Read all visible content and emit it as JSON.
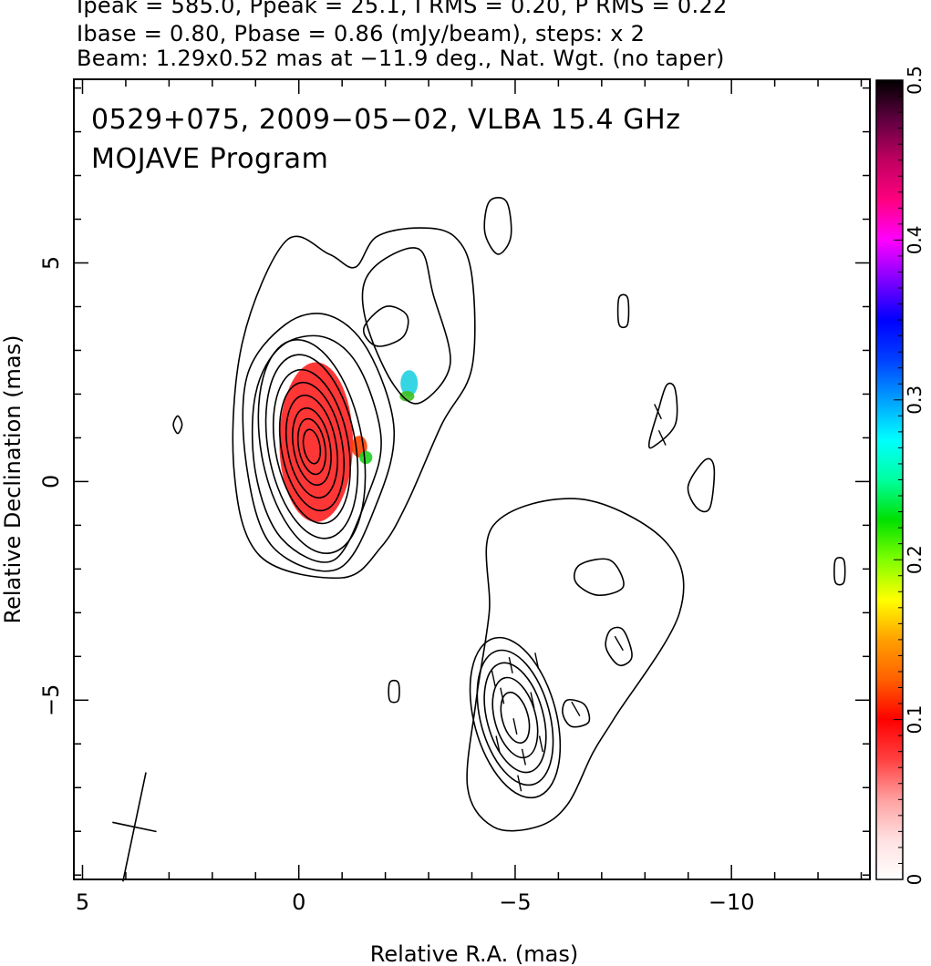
{
  "header": {
    "line1": "Ipeak = 585.0, Ppeak = 25.1, I RMS = 0.20, P RMS = 0.22",
    "line2": "Ibase = 0.80, Pbase = 0.86 (mJy/beam), steps: x 2",
    "line3": "Beam: 1.29x0.52 mas at −11.9 deg., Nat. Wgt. (no taper)"
  },
  "chart_data": {
    "type": "contour",
    "title": "0529+075, 2009−05−02, VLBA 15.4 GHz",
    "subtitle": "MOJAVE Program",
    "xlabel": "Relative R.A. (mas)",
    "ylabel": "Relative Declination (mas)",
    "xlim": [
      5.2,
      -13.2
    ],
    "ylim": [
      -9.1,
      9.2
    ],
    "x_ticks": [
      5,
      0,
      -5,
      -10
    ],
    "x_tick_labels": [
      "5",
      "0",
      "−5",
      "−10"
    ],
    "y_ticks": [
      5,
      0,
      -5
    ],
    "y_tick_labels": [
      "5",
      "0",
      "−5"
    ],
    "beam": {
      "major_mas": 1.29,
      "minor_mas": 0.52,
      "pa_deg": -11.9
    },
    "contour_base_mJy_per_beam": 0.8,
    "contour_step_factor": 2,
    "core_contours": {
      "center": [
        -0.3,
        0.8
      ],
      "major_axes_mas": [
        0.8,
        1.3,
        1.8,
        2.4,
        3.0,
        3.6,
        4.3,
        5.0
      ],
      "axis_ratio": 0.47,
      "pa_deg": -10
    },
    "knot_contours": {
      "center": [
        -5.0,
        -5.4
      ],
      "major_axes_mas": [
        1.2,
        1.9,
        2.6,
        3.2,
        3.8
      ],
      "axis_ratio": 0.5,
      "pa_deg": -15
    },
    "outer_contours": [
      {
        "name": "core-outer",
        "points": [
          [
            -0.8,
            -1.8
          ],
          [
            0.4,
            -1.3
          ],
          [
            1.0,
            0.2
          ],
          [
            1.0,
            2.0
          ],
          [
            0.4,
            3.1
          ],
          [
            -0.6,
            3.3
          ],
          [
            -1.4,
            2.6
          ],
          [
            -1.9,
            1.0
          ],
          [
            -1.6,
            -0.3
          ]
        ]
      },
      {
        "name": "core-outer-2",
        "points": [
          [
            -0.9,
            -2.0
          ],
          [
            0.6,
            -1.5
          ],
          [
            1.2,
            0.3
          ],
          [
            1.2,
            2.4
          ],
          [
            0.3,
            3.6
          ],
          [
            -0.7,
            3.8
          ],
          [
            -1.6,
            3.0
          ],
          [
            -2.2,
            1.2
          ],
          [
            -1.8,
            -0.5
          ]
        ]
      },
      {
        "name": "envelope",
        "points": [
          [
            -1.0,
            -2.2
          ],
          [
            0.9,
            -1.7
          ],
          [
            1.5,
            0.3
          ],
          [
            1.3,
            3.2
          ],
          [
            0.3,
            5.5
          ],
          [
            -0.7,
            5.2
          ],
          [
            -1.3,
            4.9
          ],
          [
            -1.8,
            5.6
          ],
          [
            -2.8,
            5.8
          ],
          [
            -3.6,
            5.6
          ],
          [
            -4.0,
            4.7
          ],
          [
            -4.0,
            2.6
          ],
          [
            -3.3,
            1.3
          ],
          [
            -2.5,
            -0.5
          ],
          [
            -1.9,
            -1.5
          ]
        ]
      },
      {
        "name": "lobe-inner",
        "points": [
          [
            -1.5,
            4.5
          ],
          [
            -2.0,
            5.1
          ],
          [
            -2.8,
            5.3
          ],
          [
            -3.1,
            4.3
          ],
          [
            -3.5,
            2.7
          ],
          [
            -2.8,
            1.8
          ],
          [
            -2.2,
            2.2
          ],
          [
            -1.6,
            3.5
          ]
        ]
      },
      {
        "name": "lobe-hole",
        "points": [
          [
            -1.5,
            3.5
          ],
          [
            -2.0,
            4.0
          ],
          [
            -2.5,
            3.8
          ],
          [
            -2.4,
            3.3
          ],
          [
            -1.8,
            3.1
          ]
        ]
      },
      {
        "name": "jet-envelope",
        "points": [
          [
            -4.5,
            -1.0
          ],
          [
            -6.5,
            -0.4
          ],
          [
            -8.5,
            -1.4
          ],
          [
            -8.8,
            -3.0
          ],
          [
            -7.3,
            -5.4
          ],
          [
            -6.8,
            -6.2
          ],
          [
            -6.2,
            -7.4
          ],
          [
            -5.5,
            -7.9
          ],
          [
            -4.5,
            -7.9
          ],
          [
            -3.9,
            -7.0
          ],
          [
            -4.1,
            -5.0
          ],
          [
            -4.4,
            -3.0
          ]
        ]
      },
      {
        "name": "blob-1",
        "points": [
          [
            -4.4,
            6.4
          ],
          [
            -4.8,
            6.4
          ],
          [
            -4.9,
            5.6
          ],
          [
            -4.6,
            5.2
          ],
          [
            -4.3,
            5.7
          ]
        ]
      },
      {
        "name": "blob-2",
        "points": [
          [
            -7.4,
            4.2
          ],
          [
            -7.6,
            4.2
          ],
          [
            -7.6,
            3.6
          ],
          [
            -7.4,
            3.6
          ]
        ]
      },
      {
        "name": "blob-3",
        "points": [
          [
            -8.5,
            2.2
          ],
          [
            -8.7,
            2.1
          ],
          [
            -8.7,
            1.3
          ],
          [
            -8.2,
            0.8
          ],
          [
            -8.1,
            0.9
          ],
          [
            -8.3,
            1.6
          ]
        ]
      },
      {
        "name": "blob-4",
        "points": [
          [
            -9.4,
            0.5
          ],
          [
            -9.6,
            0.3
          ],
          [
            -9.5,
            -0.6
          ],
          [
            -9.2,
            -0.6
          ],
          [
            -9.0,
            -0.1
          ]
        ]
      },
      {
        "name": "blob-5",
        "points": [
          [
            -6.5,
            -1.9
          ],
          [
            -7.2,
            -1.8
          ],
          [
            -7.5,
            -2.4
          ],
          [
            -6.9,
            -2.6
          ],
          [
            -6.4,
            -2.3
          ]
        ]
      },
      {
        "name": "blob-6",
        "points": [
          [
            -7.2,
            -3.4
          ],
          [
            -7.5,
            -3.4
          ],
          [
            -7.7,
            -4.0
          ],
          [
            -7.4,
            -4.2
          ],
          [
            -7.1,
            -3.8
          ]
        ]
      },
      {
        "name": "blob-7",
        "points": [
          [
            -6.2,
            -5.0
          ],
          [
            -6.6,
            -5.1
          ],
          [
            -6.7,
            -5.5
          ],
          [
            -6.3,
            -5.6
          ],
          [
            -6.1,
            -5.3
          ]
        ]
      },
      {
        "name": "blob-8",
        "points": [
          [
            2.8,
            1.5
          ],
          [
            2.7,
            1.3
          ],
          [
            2.8,
            1.1
          ],
          [
            2.9,
            1.3
          ]
        ]
      },
      {
        "name": "blob-9",
        "points": [
          [
            -2.1,
            -4.6
          ],
          [
            -2.3,
            -4.6
          ],
          [
            -2.3,
            -5.0
          ],
          [
            -2.1,
            -5.0
          ]
        ]
      },
      {
        "name": "blob-10",
        "points": [
          [
            -12.4,
            -1.8
          ],
          [
            -12.6,
            -1.8
          ],
          [
            -12.6,
            -2.3
          ],
          [
            -12.4,
            -2.3
          ]
        ]
      }
    ],
    "polarization_patches": [
      {
        "name": "core-patch",
        "center": [
          -0.4,
          0.9
        ],
        "rx": 0.85,
        "ry": 1.85,
        "color": "#ff2020"
      },
      {
        "name": "patch-2a",
        "center": [
          -1.4,
          0.8
        ],
        "rx": 0.18,
        "ry": 0.25,
        "color": "#ff4000"
      },
      {
        "name": "patch-2b",
        "center": [
          -1.55,
          0.55
        ],
        "rx": 0.15,
        "ry": 0.15,
        "color": "#20d020"
      },
      {
        "name": "patch-3a",
        "center": [
          -2.55,
          2.25
        ],
        "rx": 0.2,
        "ry": 0.3,
        "color": "#20d0e0"
      },
      {
        "name": "patch-3b",
        "center": [
          -2.5,
          1.95
        ],
        "rx": 0.17,
        "ry": 0.12,
        "color": "#40c020"
      }
    ],
    "evpa_vectors": [
      [
        -4.7,
        -4.9,
        -12
      ],
      [
        -5.0,
        -5.6,
        -12
      ],
      [
        -5.2,
        -6.3,
        -12
      ],
      [
        -4.9,
        -4.2,
        -12
      ],
      [
        -5.4,
        -5.0,
        -12
      ],
      [
        -4.6,
        -6.0,
        -12
      ],
      [
        -5.5,
        -4.1,
        -12
      ],
      [
        -4.5,
        -4.5,
        -12
      ],
      [
        -5.6,
        -6.0,
        -12
      ],
      [
        -5.1,
        -6.9,
        -12
      ],
      [
        -8.3,
        1.6,
        -25
      ],
      [
        -8.4,
        1.0,
        -25
      ],
      [
        -7.4,
        -3.7,
        -30
      ],
      [
        -6.4,
        -5.2,
        -30
      ]
    ],
    "colorbar": {
      "min": 0,
      "max": 0.5,
      "ticks": [
        0,
        0.1,
        0.2,
        0.3,
        0.4,
        0.5
      ],
      "tick_labels": [
        "0",
        "0.1",
        "0.2",
        "0.3",
        "0.4",
        "0.5"
      ],
      "colors": [
        "#ffffff",
        "#ffe0e0",
        "#ffa0a0",
        "#ff4040",
        "#ff0000",
        "#ff6000",
        "#ffa000",
        "#ffff00",
        "#80ff00",
        "#00e000",
        "#00ffa0",
        "#00ffff",
        "#00a0ff",
        "#0040ff",
        "#0000ff",
        "#8000ff",
        "#ff00ff",
        "#ff0080",
        "#c00060",
        "#600040",
        "#000000"
      ]
    }
  }
}
